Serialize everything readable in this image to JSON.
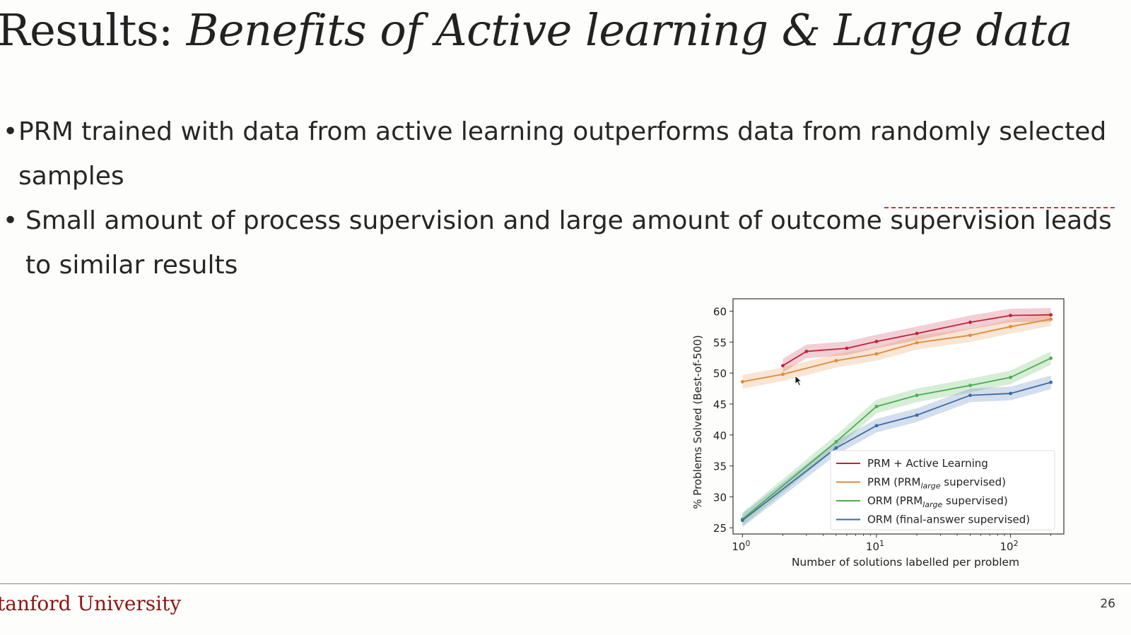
{
  "slide": {
    "title_prefix": "Results: ",
    "title_emphasis": "Benefits of Active learning & Large data",
    "bullets": [
      "PRM trained with data from active learning outperforms data from randomly selected samples",
      "Small amount of process supervision and large amount of outcome supervision leads to similar results"
    ],
    "footer_brand": "tanford University",
    "page_number": "26",
    "bullet_glyph": "•"
  },
  "chart_data": {
    "type": "line",
    "xlabel": "Number of solutions labelled per problem",
    "ylabel": "% Problems Solved (Best-of-500)",
    "xscale": "log",
    "xlim": [
      0.85,
      250
    ],
    "ylim": [
      24,
      62
    ],
    "xticks": [
      1,
      10,
      100
    ],
    "xtick_labels": [
      [
        "10",
        "0"
      ],
      [
        "10",
        "1"
      ],
      [
        "10",
        "2"
      ]
    ],
    "yticks": [
      25,
      30,
      35,
      40,
      45,
      50,
      55,
      60
    ],
    "grid": false,
    "legend_position": "lower-right",
    "series": [
      {
        "name": "PRM + Active Learning",
        "color": "#c0233a",
        "x": [
          2,
          3,
          6,
          10,
          20,
          50,
          100,
          200
        ],
        "y": [
          51.2,
          53.5,
          54.0,
          55.1,
          56.4,
          58.2,
          59.3,
          59.4
        ]
      },
      {
        "name": "PRM (PRM",
        "name_sub": "large",
        "name_tail": " supervised)",
        "color": "#e08a3a",
        "x": [
          1,
          2,
          5,
          10,
          20,
          50,
          100,
          200
        ],
        "y": [
          48.6,
          49.8,
          52.0,
          53.1,
          54.9,
          56.1,
          57.5,
          58.7
        ]
      },
      {
        "name": "ORM (PRM",
        "name_sub": "large",
        "name_tail": " supervised)",
        "color": "#4aae4f",
        "x": [
          1,
          5,
          10,
          20,
          50,
          100,
          200
        ],
        "y": [
          26.4,
          38.9,
          44.6,
          46.4,
          48.0,
          49.3,
          52.4
        ]
      },
      {
        "name": "ORM (final-answer supervised)",
        "color": "#3b6aa8",
        "x": [
          1,
          5,
          10,
          20,
          50,
          100,
          200
        ],
        "y": [
          26.2,
          37.9,
          41.5,
          43.2,
          46.4,
          46.7,
          48.5
        ]
      }
    ]
  }
}
